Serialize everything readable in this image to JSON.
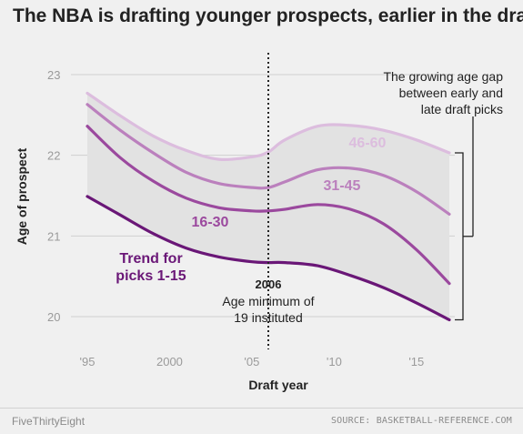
{
  "title": "The NBA is drafting younger prospects, earlier in the draft",
  "footer": {
    "brand": "FiveThirtyEight",
    "source": "SOURCE: BASKETBALL-REFERENCE.COM"
  },
  "colors": {
    "background": "#f0f0f0",
    "band": "#e2e2e2",
    "gridline": "#d0d0d0",
    "series_1_15": "#6a1777",
    "series_16_30": "#9b499e",
    "series_31_45": "#bb80bd",
    "series_46_60": "#dcbdde"
  },
  "chart_data": {
    "type": "line",
    "xlabel": "Draft year",
    "ylabel": "Age of prospect",
    "xlim": [
      1995,
      2017
    ],
    "ylim": [
      20,
      23
    ],
    "xticks": [
      1995,
      2000,
      2005,
      2010,
      2015
    ],
    "xtick_labels": [
      "'95",
      "2000",
      "'05",
      "'10",
      "'15"
    ],
    "yticks": [
      20,
      21,
      22,
      23
    ],
    "ytick_labels": [
      "20",
      "21",
      "22",
      "23"
    ],
    "grid": "horizontal",
    "shaded_band_between": [
      "46-60",
      "Trend for picks 1-15"
    ],
    "series": [
      {
        "name": "Trend for picks 1-15",
        "label": "Trend for picks 1-15",
        "label_lines": [
          "Trend for",
          "picks 1-15"
        ],
        "color": "#6a1777",
        "x": [
          1995,
          1997,
          1999,
          2001,
          2003,
          2005,
          2006,
          2007,
          2009,
          2011,
          2013,
          2015,
          2017
        ],
        "y": [
          21.49,
          21.26,
          21.03,
          20.85,
          20.74,
          20.68,
          20.67,
          20.67,
          20.63,
          20.51,
          20.36,
          20.17,
          19.96
        ]
      },
      {
        "name": "16-30",
        "label": "16-30",
        "color": "#9b499e",
        "x": [
          1995,
          1997,
          1999,
          2001,
          2003,
          2005,
          2006,
          2007,
          2009,
          2011,
          2013,
          2015,
          2017
        ],
        "y": [
          22.36,
          21.97,
          21.68,
          21.47,
          21.35,
          21.31,
          21.31,
          21.33,
          21.39,
          21.33,
          21.15,
          20.83,
          20.41
        ]
      },
      {
        "name": "31-45",
        "label": "31-45",
        "color": "#bb80bd",
        "x": [
          1995,
          1997,
          1999,
          2001,
          2003,
          2005,
          2006,
          2007,
          2009,
          2011,
          2013,
          2015,
          2017
        ],
        "y": [
          22.63,
          22.31,
          22.03,
          21.79,
          21.65,
          21.6,
          21.6,
          21.67,
          21.82,
          21.84,
          21.75,
          21.55,
          21.27
        ]
      },
      {
        "name": "46-60",
        "label": "46-60",
        "color": "#dcbdde",
        "x": [
          1995,
          1997,
          1999,
          2001,
          2003,
          2005,
          2006,
          2007,
          2009,
          2011,
          2013,
          2015,
          2017
        ],
        "y": [
          22.77,
          22.49,
          22.24,
          22.06,
          21.95,
          21.98,
          22.04,
          22.19,
          22.36,
          22.37,
          22.31,
          22.19,
          22.03
        ]
      }
    ],
    "annotations": {
      "rule_year": 2006,
      "rule_year_label": "2006",
      "rule_text_lines": [
        "Age minimum of",
        "19 instituted"
      ],
      "gap_text_lines": [
        "The growing age gap",
        "between early and",
        "late draft picks"
      ]
    }
  }
}
